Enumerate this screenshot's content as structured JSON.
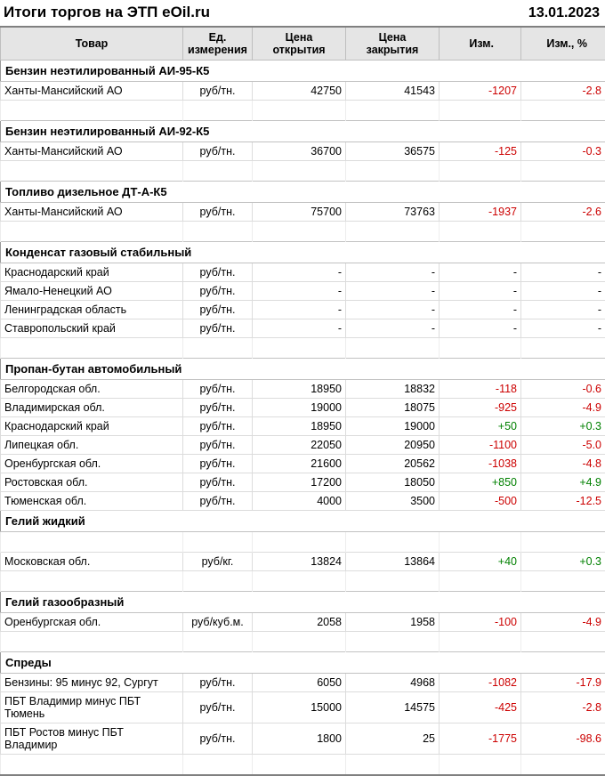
{
  "page": {
    "title": "Итоги торгов на ЭТП eOil.ru",
    "date": "13.01.2023"
  },
  "table": {
    "columns": [
      {
        "key": "product",
        "label": "Товар"
      },
      {
        "key": "unit",
        "label": "Ед.\nизмерения"
      },
      {
        "key": "open",
        "label": "Цена\nоткрытия"
      },
      {
        "key": "close",
        "label": "Цена\nзакрытия"
      },
      {
        "key": "change",
        "label": "Изм."
      },
      {
        "key": "change_pct",
        "label": "Изм., %"
      }
    ],
    "colors": {
      "negative": "#cc0000",
      "positive": "#008000"
    },
    "sections": [
      {
        "title": "Бензин неэтилированный АИ-95-К5",
        "spacer_before": false,
        "spacer_after_title": false,
        "rows": [
          {
            "product": "Ханты-Мансийский АО",
            "unit": "руб/тн.",
            "open": "42750",
            "close": "41543",
            "change": "-1207",
            "change_pct": "-2.8"
          }
        ]
      },
      {
        "title": "Бензин неэтилированный АИ-92-К5",
        "spacer_before": true,
        "spacer_after_title": false,
        "rows": [
          {
            "product": "Ханты-Мансийский АО",
            "unit": "руб/тн.",
            "open": "36700",
            "close": "36575",
            "change": "-125",
            "change_pct": "-0.3"
          }
        ]
      },
      {
        "title": "Топливо дизельное ДТ-А-К5",
        "spacer_before": true,
        "spacer_after_title": false,
        "rows": [
          {
            "product": "Ханты-Мансийский АО",
            "unit": "руб/тн.",
            "open": "75700",
            "close": "73763",
            "change": "-1937",
            "change_pct": "-2.6"
          }
        ]
      },
      {
        "title": "Конденсат газовый стабильный",
        "spacer_before": true,
        "spacer_after_title": false,
        "rows": [
          {
            "product": "Краснодарский край",
            "unit": "руб/тн.",
            "open": "-",
            "close": "-",
            "change": "-",
            "change_pct": "-"
          },
          {
            "product": "Ямало-Ненецкий АО",
            "unit": "руб/тн.",
            "open": "-",
            "close": "-",
            "change": "-",
            "change_pct": "-"
          },
          {
            "product": "Ленинградская область",
            "unit": "руб/тн.",
            "open": "-",
            "close": "-",
            "change": "-",
            "change_pct": "-"
          },
          {
            "product": "Ставропольский край",
            "unit": "руб/тн.",
            "open": "-",
            "close": "-",
            "change": "-",
            "change_pct": "-"
          }
        ]
      },
      {
        "title": "Пропан-бутан автомобильный",
        "spacer_before": true,
        "spacer_after_title": false,
        "rows": [
          {
            "product": "Белгородская обл.",
            "unit": "руб/тн.",
            "open": "18950",
            "close": "18832",
            "change": "-118",
            "change_pct": "-0.6"
          },
          {
            "product": "Владимирская обл.",
            "unit": "руб/тн.",
            "open": "19000",
            "close": "18075",
            "change": "-925",
            "change_pct": "-4.9"
          },
          {
            "product": "Краснодарский край",
            "unit": "руб/тн.",
            "open": "18950",
            "close": "19000",
            "change": "+50",
            "change_pct": "+0.3"
          },
          {
            "product": "Липецкая обл.",
            "unit": "руб/тн.",
            "open": "22050",
            "close": "20950",
            "change": "-1100",
            "change_pct": "-5.0"
          },
          {
            "product": "Оренбургская обл.",
            "unit": "руб/тн.",
            "open": "21600",
            "close": "20562",
            "change": "-1038",
            "change_pct": "-4.8"
          },
          {
            "product": "Ростовская обл.",
            "unit": "руб/тн.",
            "open": "17200",
            "close": "18050",
            "change": "+850",
            "change_pct": "+4.9"
          },
          {
            "product": "Тюменская обл.",
            "unit": "руб/тн.",
            "open": "4000",
            "close": "3500",
            "change": "-500",
            "change_pct": "-12.5"
          }
        ]
      },
      {
        "title": "Гелий жидкий",
        "spacer_before": false,
        "spacer_after_title": true,
        "rows": [
          {
            "product": "Московская обл.",
            "unit": "руб/кг.",
            "open": "13824",
            "close": "13864",
            "change": "+40",
            "change_pct": "+0.3"
          }
        ]
      },
      {
        "title": "Гелий газообразный",
        "spacer_before": true,
        "spacer_after_title": false,
        "rows": [
          {
            "product": "Оренбургская обл.",
            "unit": "руб/куб.м.",
            "open": "2058",
            "close": "1958",
            "change": "-100",
            "change_pct": "-4.9"
          }
        ]
      },
      {
        "title": "Спреды",
        "spacer_before": true,
        "spacer_after_title": false,
        "rows": [
          {
            "product": "Бензины: 95 минус 92, Сургут",
            "unit": "руб/тн.",
            "open": "6050",
            "close": "4968",
            "change": "-1082",
            "change_pct": "-17.9"
          },
          {
            "product": "ПБТ Владимир минус ПБТ Тюмень",
            "unit": "руб/тн.",
            "open": "15000",
            "close": "14575",
            "change": "-425",
            "change_pct": "-2.8"
          },
          {
            "product": "ПБТ Ростов минус ПБТ Владимир",
            "unit": "руб/тн.",
            "open": "1800",
            "close": "25",
            "change": "-1775",
            "change_pct": "-98.6"
          }
        ]
      }
    ]
  }
}
